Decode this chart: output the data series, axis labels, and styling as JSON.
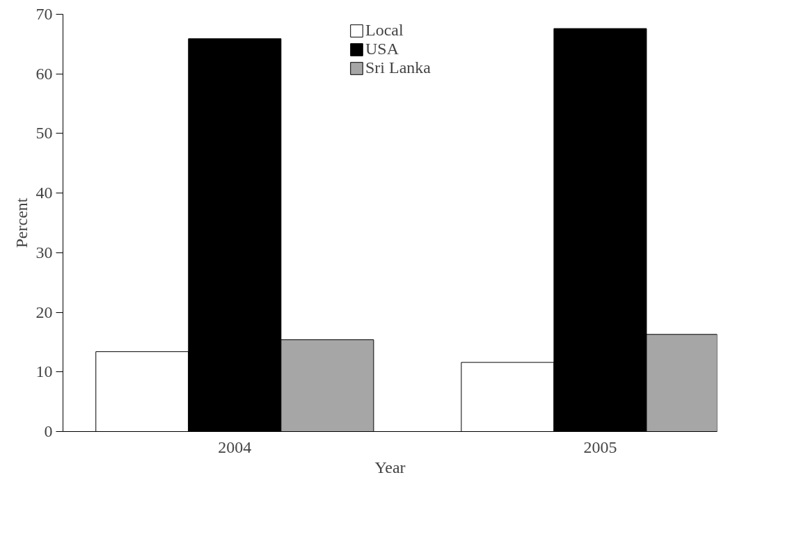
{
  "chart_data": {
    "type": "bar",
    "xlabel": "Year",
    "ylabel": "Percent",
    "categories": [
      "2004",
      "2005"
    ],
    "series": [
      {
        "name": "Local",
        "color": "#ffffff",
        "values": [
          13.4,
          11.6
        ]
      },
      {
        "name": "USA",
        "color": "#000000",
        "values": [
          65.9,
          67.6
        ]
      },
      {
        "name": "Sri Lanka",
        "color": "#a6a6a6",
        "values": [
          15.4,
          16.3
        ]
      }
    ],
    "ylim": [
      0,
      70
    ],
    "yticks": [
      0,
      10,
      20,
      30,
      40,
      50,
      60,
      70
    ],
    "grid": false,
    "legend": "top"
  }
}
